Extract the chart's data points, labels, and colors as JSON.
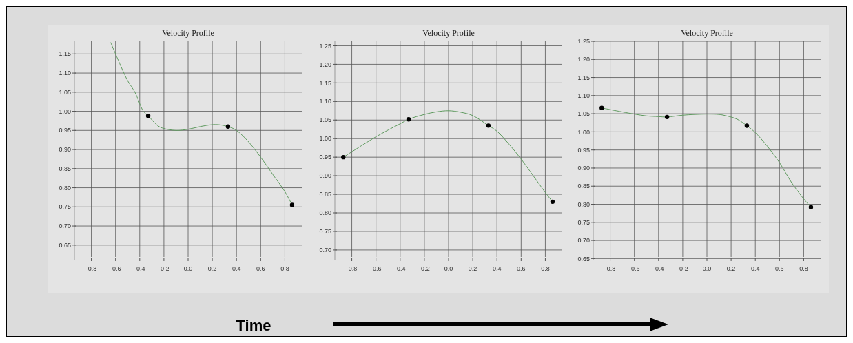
{
  "chart_data": [
    {
      "type": "scatter",
      "title": "Velocity Profile",
      "xlim": [
        -0.94,
        0.94
      ],
      "ylim": [
        0.61,
        1.183
      ],
      "xticks": [
        {
          "value": -0.8,
          "label": "-0.8"
        },
        {
          "value": -0.6,
          "label": "-0.6"
        },
        {
          "value": -0.4,
          "label": "-0.4"
        },
        {
          "value": -0.2,
          "label": "-0.2"
        },
        {
          "value": 0,
          "label": "0.0"
        },
        {
          "value": 0.2,
          "label": "0.2"
        },
        {
          "value": 0.4,
          "label": "0.4"
        },
        {
          "value": 0.6,
          "label": "0.6"
        },
        {
          "value": 0.8,
          "label": "0.8"
        }
      ],
      "yticks": [
        {
          "value": 0.65,
          "label": "0.65"
        },
        {
          "value": 0.7,
          "label": "0.70"
        },
        {
          "value": 0.75,
          "label": "0.75"
        },
        {
          "value": 0.8,
          "label": "0.80"
        },
        {
          "value": 0.85,
          "label": "0.85"
        },
        {
          "value": 0.9,
          "label": "0.90"
        },
        {
          "value": 0.95,
          "label": "0.95"
        },
        {
          "value": 1.0,
          "label": "1.00"
        },
        {
          "value": 1.05,
          "label": "1.05"
        },
        {
          "value": 1.1,
          "label": "1.10"
        },
        {
          "value": 1.15,
          "label": "1.15"
        }
      ],
      "grid": true,
      "series": [
        {
          "type": "line",
          "color": "#5f9a5f",
          "x": [
            -0.64,
            -0.6,
            -0.5,
            -0.44,
            -0.37,
            -0.33,
            -0.25,
            -0.2,
            -0.1,
            0,
            0.1,
            0.2,
            0.25,
            0.33,
            0.4,
            0.5,
            0.6,
            0.7,
            0.8,
            0.86
          ],
          "values": [
            1.18,
            1.15,
            1.08,
            1.05,
            1.0,
            0.988,
            0.962,
            0.955,
            0.95,
            0.953,
            0.96,
            0.965,
            0.965,
            0.96,
            0.95,
            0.92,
            0.88,
            0.835,
            0.79,
            0.755
          ]
        },
        {
          "type": "scatter",
          "color": "#000000",
          "x": [
            -0.33,
            0.33,
            0.86
          ],
          "values": [
            0.988,
            0.96,
            0.755
          ]
        }
      ]
    },
    {
      "type": "scatter",
      "title": "Velocity Profile",
      "xlim": [
        -0.94,
        0.94
      ],
      "ylim": [
        0.672,
        1.262
      ],
      "xticks": [
        {
          "value": -0.8,
          "label": "-0.8"
        },
        {
          "value": -0.6,
          "label": "-0.6"
        },
        {
          "value": -0.4,
          "label": "-0.4"
        },
        {
          "value": -0.2,
          "label": "-0.2"
        },
        {
          "value": 0,
          "label": "0.0"
        },
        {
          "value": 0.2,
          "label": "0.2"
        },
        {
          "value": 0.4,
          "label": "0.4"
        },
        {
          "value": 0.6,
          "label": "0.6"
        },
        {
          "value": 0.8,
          "label": "0.8"
        }
      ],
      "yticks": [
        {
          "value": 0.7,
          "label": "0.70"
        },
        {
          "value": 0.75,
          "label": "0.75"
        },
        {
          "value": 0.8,
          "label": "0.80"
        },
        {
          "value": 0.85,
          "label": "0.85"
        },
        {
          "value": 0.9,
          "label": "0.90"
        },
        {
          "value": 0.95,
          "label": "0.95"
        },
        {
          "value": 1.0,
          "label": "1.00"
        },
        {
          "value": 1.05,
          "label": "1.05"
        },
        {
          "value": 1.1,
          "label": "1.10"
        },
        {
          "value": 1.15,
          "label": "1.15"
        },
        {
          "value": 1.2,
          "label": "1.20"
        },
        {
          "value": 1.25,
          "label": "1.25"
        }
      ],
      "grid": true,
      "series": [
        {
          "type": "line",
          "color": "#5f9a5f",
          "x": [
            -0.87,
            -0.7,
            -0.6,
            -0.5,
            -0.4,
            -0.33,
            -0.2,
            -0.1,
            0,
            0.1,
            0.2,
            0.33,
            0.4,
            0.5,
            0.6,
            0.7,
            0.8,
            0.86
          ],
          "values": [
            0.95,
            0.985,
            1.005,
            1.023,
            1.04,
            1.052,
            1.065,
            1.072,
            1.075,
            1.071,
            1.062,
            1.035,
            1.02,
            0.985,
            0.945,
            0.9,
            0.855,
            0.83
          ]
        },
        {
          "type": "scatter",
          "color": "#000000",
          "x": [
            -0.87,
            -0.33,
            0.33,
            0.86
          ],
          "values": [
            0.95,
            1.052,
            1.035,
            0.83
          ]
        }
      ]
    },
    {
      "type": "scatter",
      "title": "Velocity Profile",
      "xlim": [
        -0.94,
        0.94
      ],
      "ylim": [
        0.645,
        1.25
      ],
      "xticks": [
        {
          "value": -0.8,
          "label": "-0.8"
        },
        {
          "value": -0.6,
          "label": "-0.6"
        },
        {
          "value": -0.4,
          "label": "-0.4"
        },
        {
          "value": -0.2,
          "label": "-0.2"
        },
        {
          "value": 0,
          "label": "0.0"
        },
        {
          "value": 0.2,
          "label": "0.2"
        },
        {
          "value": 0.4,
          "label": "0.4"
        },
        {
          "value": 0.6,
          "label": "0.6"
        },
        {
          "value": 0.8,
          "label": "0.8"
        }
      ],
      "yticks": [
        {
          "value": 0.65,
          "label": "0.65"
        },
        {
          "value": 0.7,
          "label": "0.70"
        },
        {
          "value": 0.75,
          "label": "0.75"
        },
        {
          "value": 0.8,
          "label": "0.80"
        },
        {
          "value": 0.85,
          "label": "0.85"
        },
        {
          "value": 0.9,
          "label": "0.90"
        },
        {
          "value": 0.95,
          "label": "0.95"
        },
        {
          "value": 1.0,
          "label": "1.00"
        },
        {
          "value": 1.05,
          "label": "1.05"
        },
        {
          "value": 1.1,
          "label": "1.10"
        },
        {
          "value": 1.15,
          "label": "1.15"
        },
        {
          "value": 1.2,
          "label": "1.20"
        },
        {
          "value": 1.25,
          "label": "1.25"
        }
      ],
      "grid": true,
      "series": [
        {
          "type": "line",
          "color": "#5f9a5f",
          "x": [
            -0.87,
            -0.7,
            -0.6,
            -0.5,
            -0.4,
            -0.33,
            -0.2,
            -0.1,
            0,
            0.1,
            0.15,
            0.25,
            0.33,
            0.4,
            0.5,
            0.6,
            0.7,
            0.8,
            0.86
          ],
          "values": [
            1.066,
            1.055,
            1.049,
            1.044,
            1.042,
            1.041,
            1.046,
            1.048,
            1.049,
            1.048,
            1.045,
            1.035,
            1.017,
            0.998,
            0.96,
            0.915,
            0.86,
            0.815,
            0.792
          ]
        },
        {
          "type": "scatter",
          "color": "#000000",
          "x": [
            -0.87,
            -0.33,
            0.33,
            0.86
          ],
          "values": [
            1.066,
            1.041,
            1.017,
            0.792
          ]
        }
      ]
    },
    {
      "type": "other",
      "annotations": [
        "Time"
      ]
    }
  ]
}
